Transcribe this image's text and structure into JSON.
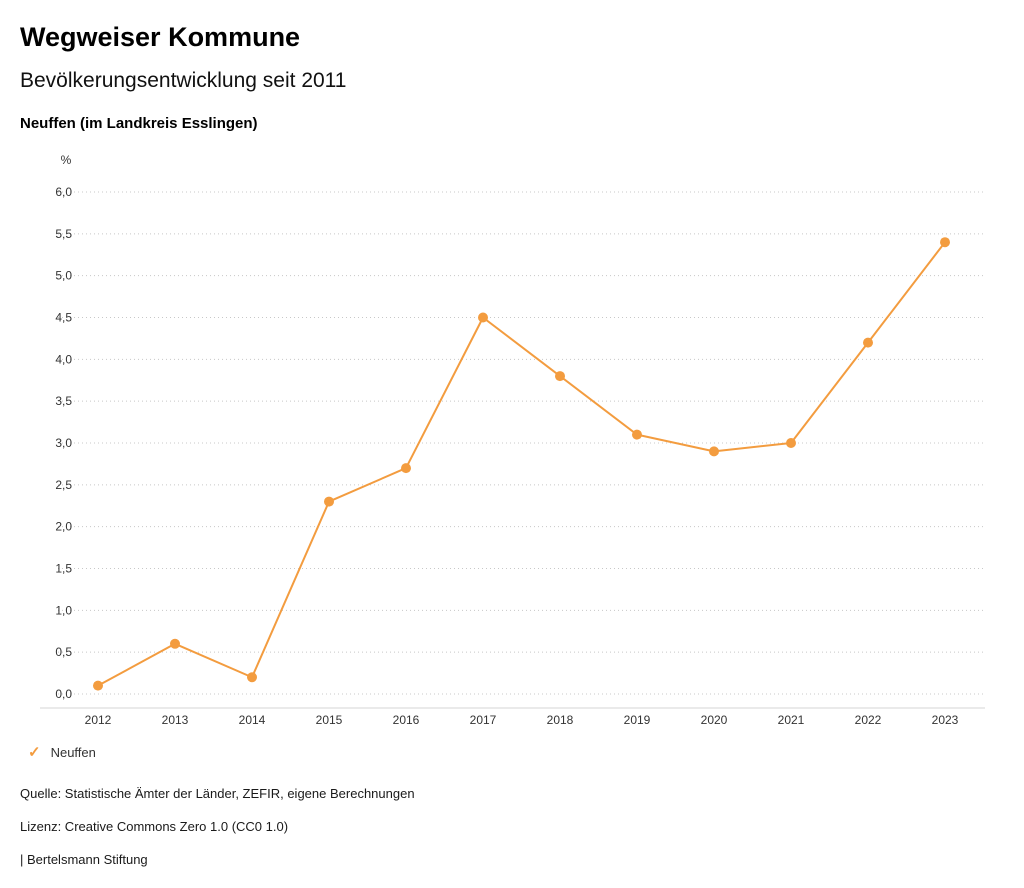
{
  "header": {
    "title": "Wegweiser Kommune",
    "subtitle": "Bevölkerungsentwicklung seit 2011",
    "region": "Neuffen (im Landkreis Esslingen)"
  },
  "chart_data": {
    "type": "line",
    "title": "Bevölkerungsentwicklung seit 2011",
    "unit_label": "%",
    "categories": [
      "2012",
      "2013",
      "2014",
      "2015",
      "2016",
      "2017",
      "2018",
      "2019",
      "2020",
      "2021",
      "2022",
      "2023"
    ],
    "series": [
      {
        "name": "Neuffen",
        "values": [
          0.1,
          0.6,
          0.2,
          2.3,
          2.7,
          4.5,
          3.8,
          3.1,
          2.9,
          3.0,
          4.2,
          5.4
        ]
      }
    ],
    "xlabel": "",
    "ylabel": "%",
    "ylim": [
      0,
      6
    ],
    "ytick_values": [
      0,
      0.5,
      1,
      1.5,
      2,
      2.5,
      3,
      3.5,
      4,
      4.5,
      5,
      5.5,
      6
    ],
    "ytick_labels": [
      "0,0",
      "0,5",
      "1,0",
      "1,5",
      "2,0",
      "2,5",
      "3,0",
      "3,5",
      "4,0",
      "4,5",
      "5,0",
      "5,5",
      "6,0"
    ],
    "grid": true,
    "legend_position": "bottom-left"
  },
  "legend": {
    "items": [
      {
        "label": "Neuffen",
        "marker_glyph": "✓",
        "color": "#F39C3F"
      }
    ]
  },
  "footer": {
    "source": "Quelle: Statistische Ämter der Länder, ZEFIR, eigene Berechnungen",
    "license": "Lizenz: Creative Commons Zero 1.0 (CC0 1.0)",
    "attribution": "| Bertelsmann Stiftung"
  },
  "colors": {
    "accent": "#F39C3F",
    "grid": "#c8c8c8",
    "axis": "#d4d4d4",
    "tick_text": "#333333"
  }
}
